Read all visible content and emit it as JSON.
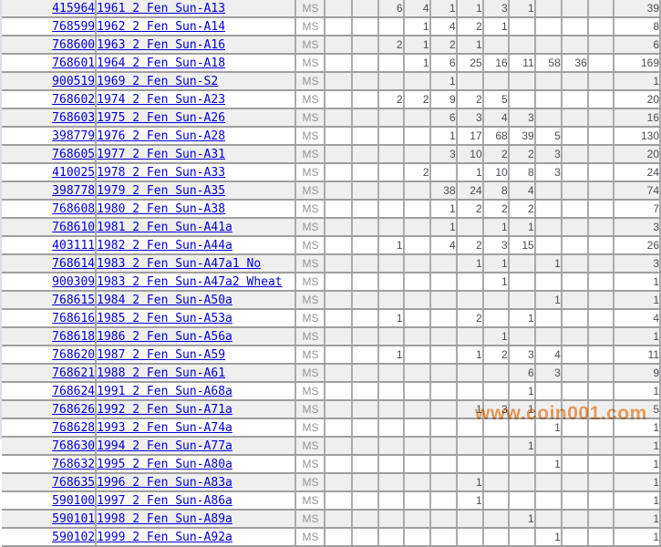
{
  "page": {
    "description": "Coin certification population report table (cropped view)"
  },
  "watermark": {
    "text": "www.coin001.com",
    "color": "#f3a25e"
  },
  "colors": {
    "link_blue": "#0000d6",
    "row_alt_gray": "#efefef",
    "grid_horizontal": "#9f9f9f",
    "grid_vertical": "#ababab",
    "count_text": "#4b4b55",
    "designation_text": "#949494",
    "left_strip": "#d8deeb"
  },
  "table": {
    "grade_label": "MS",
    "num_grade_columns": 11,
    "rows": [
      {
        "id": "415964",
        "desc": "1961 2 Fen Sun-A13",
        "grades": [
          "",
          "",
          "6",
          "4",
          "1",
          "1",
          "3",
          "1",
          "",
          "",
          ""
        ],
        "total": "39"
      },
      {
        "id": "768599",
        "desc": "1962 2 Fen Sun-A14",
        "grades": [
          "",
          "",
          "",
          "1",
          "4",
          "2",
          "1",
          "",
          "",
          "",
          ""
        ],
        "total": "8"
      },
      {
        "id": "768600",
        "desc": "1963 2 Fen Sun-A16",
        "grades": [
          "",
          "",
          "2",
          "1",
          "2",
          "1",
          "",
          "",
          "",
          "",
          ""
        ],
        "total": "6"
      },
      {
        "id": "768601",
        "desc": "1964 2 Fen Sun-A18",
        "grades": [
          "",
          "",
          "",
          "1",
          "6",
          "25",
          "16",
          "11",
          "58",
          "36",
          ""
        ],
        "total": "169"
      },
      {
        "id": "900519",
        "desc": "1969 2 Fen Sun-S2",
        "grades": [
          "",
          "",
          "",
          "",
          "1",
          "",
          "",
          "",
          "",
          "",
          ""
        ],
        "total": "1"
      },
      {
        "id": "768602",
        "desc": "1974 2 Fen Sun-A23",
        "grades": [
          "",
          "",
          "2",
          "2",
          "9",
          "2",
          "5",
          "",
          "",
          "",
          ""
        ],
        "total": "20"
      },
      {
        "id": "768603",
        "desc": "1975 2 Fen Sun-A26",
        "grades": [
          "",
          "",
          "",
          "",
          "6",
          "3",
          "4",
          "3",
          "",
          "",
          ""
        ],
        "total": "16"
      },
      {
        "id": "398779",
        "desc": "1976 2 Fen Sun-A28",
        "grades": [
          "",
          "",
          "",
          "",
          "1",
          "17",
          "68",
          "39",
          "5",
          "",
          ""
        ],
        "total": "130"
      },
      {
        "id": "768605",
        "desc": "1977 2 Fen Sun-A31",
        "grades": [
          "",
          "",
          "",
          "",
          "3",
          "10",
          "2",
          "2",
          "3",
          "",
          ""
        ],
        "total": "20"
      },
      {
        "id": "410025",
        "desc": "1978 2 Fen Sun-A33",
        "grades": [
          "",
          "",
          "",
          "2",
          "",
          "1",
          "10",
          "8",
          "3",
          "",
          ""
        ],
        "total": "24"
      },
      {
        "id": "398778",
        "desc": "1979 2 Fen Sun-A35",
        "grades": [
          "",
          "",
          "",
          "",
          "38",
          "24",
          "8",
          "4",
          "",
          "",
          ""
        ],
        "total": "74"
      },
      {
        "id": "768608",
        "desc": "1980 2 Fen Sun-A38",
        "grades": [
          "",
          "",
          "",
          "",
          "1",
          "2",
          "2",
          "2",
          "",
          "",
          ""
        ],
        "total": "7"
      },
      {
        "id": "768610",
        "desc": "1981 2 Fen Sun-A41a",
        "grades": [
          "",
          "",
          "",
          "",
          "1",
          "",
          "1",
          "1",
          "",
          "",
          ""
        ],
        "total": "3"
      },
      {
        "id": "403111",
        "desc": "1982 2 Fen Sun-A44a",
        "grades": [
          "",
          "",
          "1",
          "",
          "4",
          "2",
          "3",
          "15",
          "",
          "",
          ""
        ],
        "total": "26"
      },
      {
        "id": "768614",
        "desc": "1983 2 Fen Sun-A47a1 No",
        "grades": [
          "",
          "",
          "",
          "",
          "",
          "1",
          "1",
          "",
          "1",
          "",
          ""
        ],
        "total": "3"
      },
      {
        "id": "900309",
        "desc": "1983 2 Fen Sun-A47a2 Wheat",
        "grades": [
          "",
          "",
          "",
          "",
          "",
          "",
          "1",
          "",
          "",
          "",
          ""
        ],
        "total": "1"
      },
      {
        "id": "768615",
        "desc": "1984 2 Fen Sun-A50a",
        "grades": [
          "",
          "",
          "",
          "",
          "",
          "",
          "",
          "",
          "1",
          "",
          ""
        ],
        "total": "1"
      },
      {
        "id": "768616",
        "desc": "1985 2 Fen Sun-A53a",
        "grades": [
          "",
          "",
          "1",
          "",
          "",
          "2",
          "",
          "1",
          "",
          "",
          ""
        ],
        "total": "4"
      },
      {
        "id": "768618",
        "desc": "1986 2 Fen Sun-A56a",
        "grades": [
          "",
          "",
          "",
          "",
          "",
          "",
          "1",
          "",
          "",
          "",
          ""
        ],
        "total": "1"
      },
      {
        "id": "768620",
        "desc": "1987 2 Fen Sun-A59",
        "grades": [
          "",
          "",
          "1",
          "",
          "",
          "1",
          "2",
          "3",
          "4",
          "",
          ""
        ],
        "total": "11"
      },
      {
        "id": "768621",
        "desc": "1988 2 Fen Sun-A61",
        "grades": [
          "",
          "",
          "",
          "",
          "",
          "",
          "",
          "6",
          "3",
          "",
          ""
        ],
        "total": "9"
      },
      {
        "id": "768624",
        "desc": "1991 2 Fen Sun-A68a",
        "grades": [
          "",
          "",
          "",
          "",
          "",
          "",
          "",
          "1",
          "",
          "",
          ""
        ],
        "total": "1"
      },
      {
        "id": "768626",
        "desc": "1992 2 Fen Sun-A71a",
        "grades": [
          "",
          "",
          "",
          "",
          "",
          "1",
          "3",
          "1",
          "",
          "",
          ""
        ],
        "total": "5"
      },
      {
        "id": "768628",
        "desc": "1993 2 Fen Sun-A74a",
        "grades": [
          "",
          "",
          "",
          "",
          "",
          "",
          "",
          "",
          "1",
          "",
          ""
        ],
        "total": "1"
      },
      {
        "id": "768630",
        "desc": "1994 2 Fen Sun-A77a",
        "grades": [
          "",
          "",
          "",
          "",
          "",
          "",
          "",
          "1",
          "",
          "",
          ""
        ],
        "total": "1"
      },
      {
        "id": "768632",
        "desc": "1995 2 Fen Sun-A80a",
        "grades": [
          "",
          "",
          "",
          "",
          "",
          "",
          "",
          "",
          "1",
          "",
          ""
        ],
        "total": "1"
      },
      {
        "id": "768635",
        "desc": "1996 2 Fen Sun-A83a",
        "grades": [
          "",
          "",
          "",
          "",
          "",
          "1",
          "",
          "",
          "",
          "",
          ""
        ],
        "total": "1"
      },
      {
        "id": "590100",
        "desc": "1997 2 Fen Sun-A86a",
        "grades": [
          "",
          "",
          "",
          "",
          "",
          "1",
          "",
          "",
          "",
          "",
          ""
        ],
        "total": "1"
      },
      {
        "id": "590101",
        "desc": "1998 2 Fen Sun-A89a",
        "grades": [
          "",
          "",
          "",
          "",
          "",
          "",
          "",
          "1",
          "",
          "",
          ""
        ],
        "total": "1"
      },
      {
        "id": "590102",
        "desc": "1999 2 Fen Sun-A92a",
        "grades": [
          "",
          "",
          "",
          "",
          "",
          "",
          "",
          "",
          "1",
          "",
          ""
        ],
        "total": "1"
      }
    ]
  }
}
